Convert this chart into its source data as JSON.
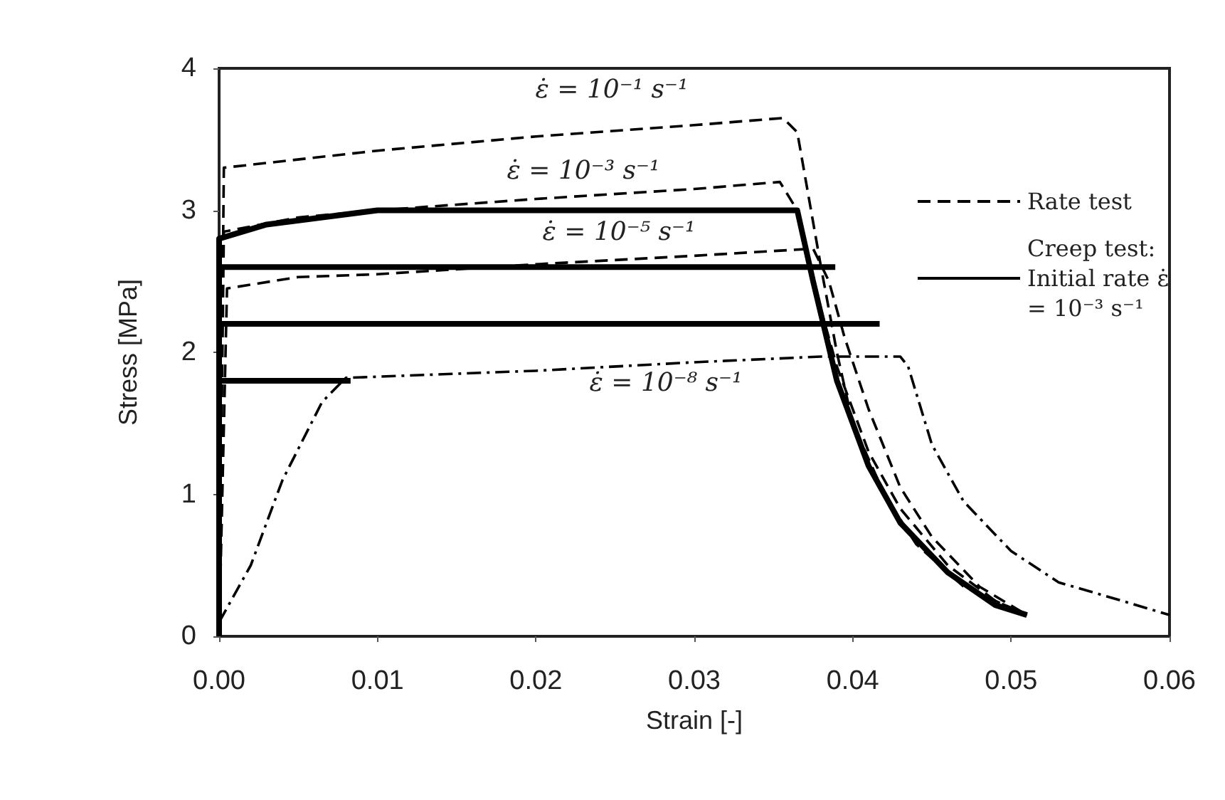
{
  "chart_data": {
    "type": "line",
    "xlabel": "Strain [-]",
    "ylabel": "Stress [MPa]",
    "xlim": [
      0,
      0.06
    ],
    "ylim": [
      0,
      4
    ],
    "xticks": [
      {
        "value": 0,
        "label": "0.00"
      },
      {
        "value": 0.01,
        "label": "0.01"
      },
      {
        "value": 0.02,
        "label": "0.02"
      },
      {
        "value": 0.03,
        "label": "0.03"
      },
      {
        "value": 0.04,
        "label": "0.04"
      },
      {
        "value": 0.05,
        "label": "0.05"
      },
      {
        "value": 0.06,
        "label": "0.06"
      }
    ],
    "yticks": [
      0,
      1,
      2,
      3,
      4
    ],
    "grid": false,
    "legend": "right",
    "marker": "none",
    "series": [
      {
        "name": "Rate test",
        "color": "#000000",
        "line_style": "dashed",
        "x": [
          0,
          0.0003,
          0.01,
          0.02,
          0.03,
          0.0356,
          0.0365,
          0.038,
          0.039,
          0.04,
          0.042,
          0.044,
          0.047,
          0.051
        ],
        "values": [
          0,
          3.3,
          3.42,
          3.52,
          3.6,
          3.65,
          3.55,
          2.6,
          2.0,
          1.5,
          1.0,
          0.65,
          0.35,
          0.15
        ]
      },
      {
        "color": "#000000",
        "line_style": "dashed",
        "x": [
          0,
          0.0003,
          0.005,
          0.01,
          0.02,
          0.03,
          0.0354,
          0.0365,
          0.038,
          0.039,
          0.041,
          0.043,
          0.046,
          0.049,
          0.051
        ],
        "values": [
          0,
          2.85,
          2.95,
          3.0,
          3.08,
          3.15,
          3.2,
          3.0,
          2.3,
          1.9,
          1.3,
          0.9,
          0.5,
          0.25,
          0.15
        ]
      },
      {
        "color": "#000000",
        "line_style": "dashed",
        "x": [
          0,
          0.0005,
          0.005,
          0.01,
          0.02,
          0.03,
          0.0375,
          0.0385,
          0.0395,
          0.041,
          0.043,
          0.045,
          0.048,
          0.051
        ],
        "values": [
          0,
          2.45,
          2.53,
          2.55,
          2.62,
          2.68,
          2.73,
          2.5,
          2.1,
          1.6,
          1.05,
          0.7,
          0.35,
          0.15
        ]
      },
      {
        "color": "#000000",
        "line_style": "dashdot",
        "x": [
          0,
          0.002,
          0.004,
          0.0065,
          0.008,
          0.02,
          0.03,
          0.038,
          0.043,
          0.0435,
          0.045,
          0.047,
          0.05,
          0.053,
          0.057,
          0.06
        ],
        "values": [
          0.1,
          0.5,
          1.1,
          1.65,
          1.82,
          1.87,
          1.93,
          1.97,
          1.97,
          1.9,
          1.35,
          0.95,
          0.6,
          0.38,
          0.25,
          0.15
        ]
      },
      {
        "name": "Creep test: Initial rate ε̇ = 10⁻³ s⁻¹",
        "color": "#000000",
        "line_style": "solid",
        "x": [
          0,
          0,
          0.003,
          0.01,
          0.0365,
          0.0375,
          0.039,
          0.041,
          0.043,
          0.046,
          0.049,
          0.051
        ],
        "values": [
          0,
          2.8,
          2.9,
          3.0,
          3.0,
          2.5,
          1.8,
          1.2,
          0.8,
          0.45,
          0.22,
          0.15
        ]
      },
      {
        "color": "#000000",
        "line_style": "solid",
        "x": [
          0,
          0.0389
        ],
        "values": [
          2.6,
          2.6
        ]
      },
      {
        "color": "#000000",
        "line_style": "solid",
        "x": [
          0,
          0.0417
        ],
        "values": [
          2.2,
          2.2
        ]
      },
      {
        "color": "#000000",
        "line_style": "solid",
        "x": [
          0,
          0.0083
        ],
        "values": [
          1.8,
          1.8
        ]
      }
    ],
    "annotations": [
      "ε̇ = 10⁻¹ s⁻¹",
      "ε̇ = 10⁻³ s⁻¹",
      "ε̇ = 10⁻⁵ s⁻¹",
      "ε̇ = 10⁻⁸ s⁻¹"
    ]
  }
}
